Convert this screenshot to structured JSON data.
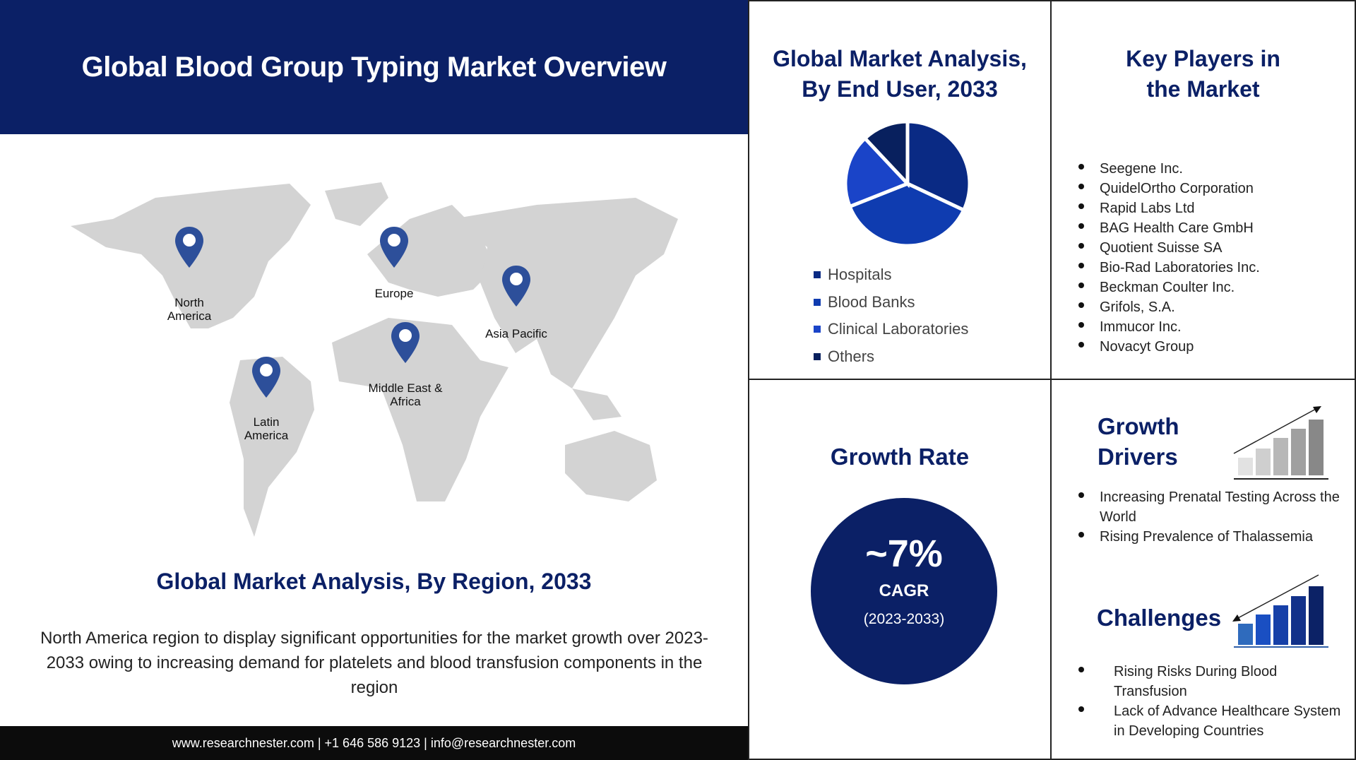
{
  "header": {
    "title": "Global Blood Group Typing Market Overview"
  },
  "map": {
    "regions": [
      {
        "label": "North America"
      },
      {
        "label": "Europe"
      },
      {
        "label": "Asia Pacific"
      },
      {
        "label": "Middle East & Africa"
      },
      {
        "label": "Latin America"
      }
    ],
    "pin_color": "#2d4f9a",
    "land_color": "#d3d3d3"
  },
  "region": {
    "title": "Global Market Analysis, By Region, 2033",
    "text": "North America region to display significant opportunities for the market growth over 2023-2033  owing to increasing demand for platelets and blood transfusion components in the region"
  },
  "footer": {
    "text": "www.researchnester.com  | +1 646 586 9123 | info@researchnester.com"
  },
  "end_user": {
    "title_line1": "Global Market Analysis,",
    "title_line2": "By End User, 2033"
  },
  "chart_data": {
    "type": "pie",
    "title": "Global Market Analysis, By End User, 2033",
    "categories": [
      "Hospitals",
      "Blood Banks",
      "Clinical Laboratories",
      "Others"
    ],
    "values": [
      32,
      37,
      19,
      12
    ],
    "colors": [
      "#0a2a84",
      "#0f3cb0",
      "#1a44c8",
      "#08205e"
    ],
    "legend": "bottom"
  },
  "key_players": {
    "title_line1": "Key Players in",
    "title_line2": "the Market",
    "items": [
      "Seegene Inc.",
      "QuidelOrtho  Corporation",
      "Rapid Labs Ltd",
      "BAG Health Care GmbH",
      "Quotient Suisse SA",
      "Bio-Rad Laboratories Inc.",
      "Beckman Coulter Inc.",
      "Grifols, S.A.",
      "Immucor Inc.",
      "Novacyt Group"
    ]
  },
  "growth": {
    "title": "Growth Rate",
    "value": "~7%",
    "label": "CAGR",
    "period": "(2023-2033)"
  },
  "drivers": {
    "title_line1": "Growth",
    "title_line2": "Drivers",
    "items": [
      "Increasing Prenatal Testing Across the World",
      "Rising Prevalence of Thalassemia"
    ]
  },
  "challenges": {
    "title": "Challenges",
    "items": [
      "Rising Risks During Blood Transfusion",
      "Lack of Advance Healthcare System in Developing  Countries"
    ]
  }
}
